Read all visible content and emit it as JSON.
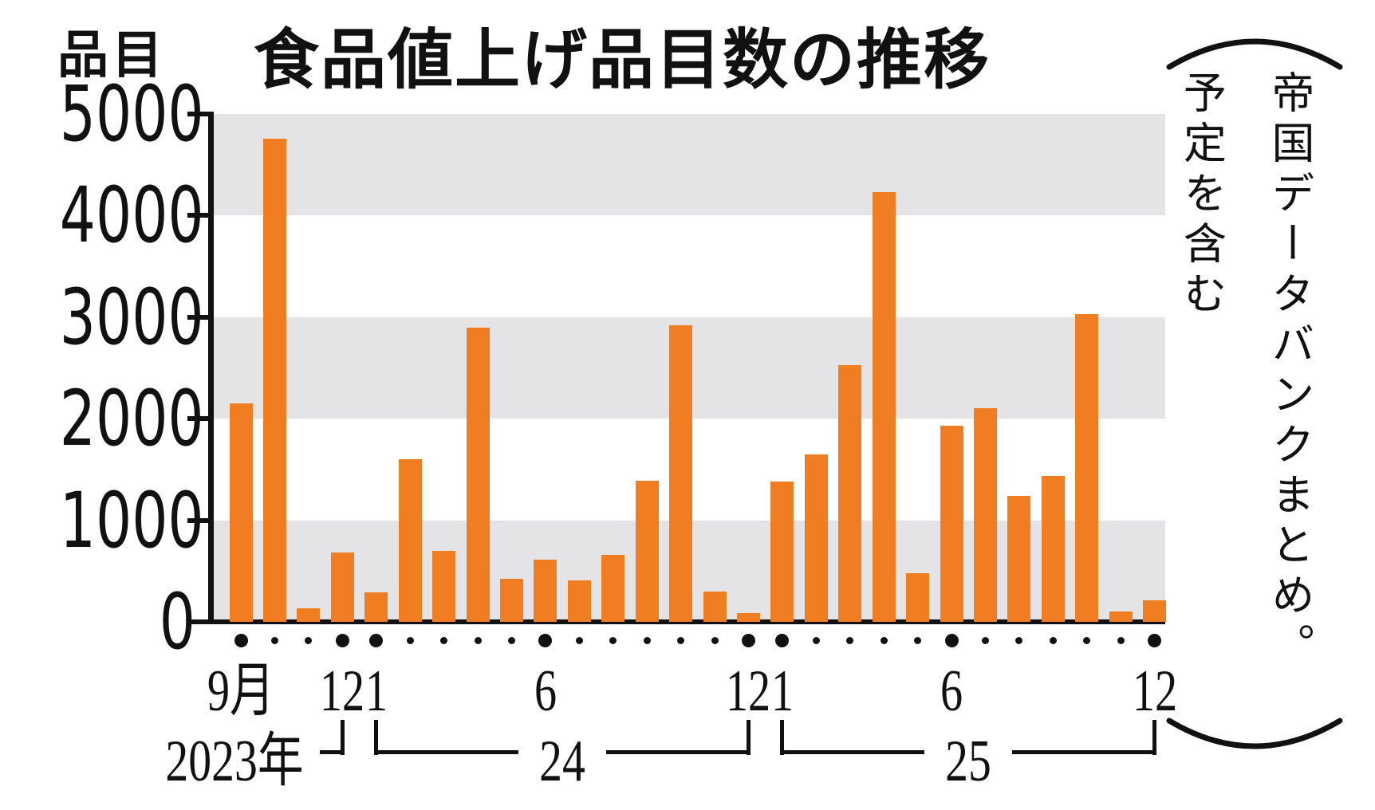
{
  "title": "食品値上げ品目数の推移",
  "y_axis": {
    "unit_label": "品目",
    "ticks": [
      "5000",
      "4000",
      "3000",
      "2000",
      "1000",
      "0"
    ]
  },
  "x_axis": {
    "month_labels": [
      {
        "k": 0,
        "label": "9月"
      },
      {
        "k": 3,
        "label": "12"
      },
      {
        "k": 4,
        "label": "1"
      },
      {
        "k": 9,
        "label": "6"
      },
      {
        "k": 15,
        "label": "12"
      },
      {
        "k": 16,
        "label": "1"
      },
      {
        "k": 21,
        "label": "6"
      },
      {
        "k": 27,
        "label": "12"
      }
    ],
    "year_groups": [
      {
        "label": "2023年",
        "start_k": null,
        "end_k": 3
      },
      {
        "label": "24",
        "start_k": 4,
        "end_k": 15
      },
      {
        "label": "25",
        "start_k": 16,
        "end_k": 27
      }
    ]
  },
  "source_note": {
    "line1": "帝国データバンクまとめ。",
    "line2": "予定を含む"
  },
  "colors": {
    "bar": "#f07d22",
    "band": "#e4e4e6",
    "ink": "#111111"
  },
  "chart_data": {
    "type": "bar",
    "title": "食品値上げ品目数の推移",
    "ylabel": "品目",
    "ylim": [
      0,
      5000
    ],
    "grid": "alternating-gray-bands",
    "legend": "none",
    "x": [
      "2023-09",
      "2023-10",
      "2023-11",
      "2023-12",
      "2024-01",
      "2024-02",
      "2024-03",
      "2024-04",
      "2024-05",
      "2024-06",
      "2024-07",
      "2024-08",
      "2024-09",
      "2024-10",
      "2024-11",
      "2024-12",
      "2025-01",
      "2025-02",
      "2025-03",
      "2025-04",
      "2025-05",
      "2025-06",
      "2025-07",
      "2025-08",
      "2025-09",
      "2025-10",
      "2025-11",
      "2025-12"
    ],
    "values": [
      2150,
      4760,
      130,
      680,
      290,
      1600,
      700,
      2900,
      420,
      610,
      410,
      660,
      1390,
      2920,
      300,
      90,
      1380,
      1650,
      2530,
      4230,
      480,
      1930,
      2100,
      1240,
      1440,
      3030,
      100,
      210
    ],
    "note": "帝国データバンクまとめ。予定を含む"
  }
}
